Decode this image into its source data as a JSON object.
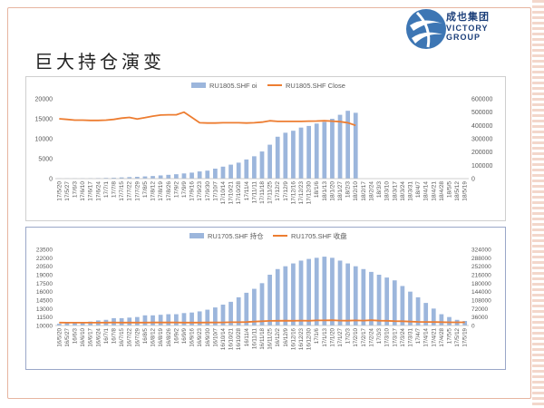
{
  "slide": {
    "title": "巨大持仓演变",
    "logo": {
      "cn": "成也集团",
      "en1": "VICTORY",
      "en2": "GROUP"
    }
  },
  "colors": {
    "bar": "#9cb6dc",
    "line": "#ed7d31",
    "axis": "#bfbfbf",
    "text": "#595959"
  },
  "chart_data": [
    {
      "type": "bar+line",
      "legend_position": "top",
      "series": [
        {
          "name": "RU1805.SHF oi",
          "kind": "bar",
          "axis": "left"
        },
        {
          "name": "RU1805.SHF Close",
          "kind": "line",
          "axis": "right"
        }
      ],
      "y_left": {
        "min": 0,
        "max": 20000,
        "ticks": [
          "0",
          "5000",
          "10000",
          "15000",
          "20000"
        ]
      },
      "y_right": {
        "min": 0,
        "max": 600000,
        "ticks": [
          "0",
          "100000",
          "200000",
          "300000",
          "400000",
          "500000",
          "600000"
        ]
      },
      "x_ticks": [
        "17/5/20",
        "17/5/27",
        "17/6/3",
        "17/6/10",
        "17/6/17",
        "17/6/24",
        "17/7/1",
        "17/7/8",
        "17/7/15",
        "17/7/22",
        "17/7/29",
        "17/8/5",
        "17/8/12",
        "17/8/19",
        "17/8/26",
        "17/9/2",
        "17/9/9",
        "17/9/16",
        "17/9/23",
        "17/9/30",
        "17/10/7",
        "17/10/14",
        "17/10/21",
        "17/10/28",
        "17/11/4",
        "17/11/11",
        "17/11/18",
        "17/11/25",
        "17/12/2",
        "17/12/9",
        "17/12/16",
        "17/12/23",
        "17/12/30",
        "18/1/6",
        "18/1/13",
        "18/1/20",
        "18/1/27",
        "18/2/3",
        "18/2/10",
        "18/2/17",
        "18/2/24",
        "18/3/3",
        "18/3/10",
        "18/3/17",
        "18/3/24",
        "18/3/31",
        "18/4/7",
        "18/4/14",
        "18/4/21",
        "18/4/28",
        "18/5/5",
        "18/5/12",
        "18/5/19"
      ],
      "bar_values": [
        50,
        60,
        70,
        80,
        100,
        130,
        180,
        220,
        300,
        380,
        450,
        550,
        650,
        800,
        950,
        1100,
        1300,
        1500,
        1800,
        2000,
        2500,
        3000,
        3500,
        4000,
        4800,
        5600,
        6800,
        8500,
        10500,
        11500,
        12000,
        12800,
        13200,
        13800,
        14200,
        15000,
        16000,
        17000,
        16500,
        null,
        null,
        null,
        null,
        null,
        null,
        null,
        null,
        null,
        null,
        null,
        null,
        null,
        null
      ],
      "line_values": [
        450000,
        445000,
        440000,
        440000,
        438000,
        438000,
        440000,
        445000,
        455000,
        460000,
        448000,
        458000,
        470000,
        478000,
        480000,
        480000,
        500000,
        460000,
        420000,
        418000,
        418000,
        420000,
        420000,
        420000,
        418000,
        420000,
        425000,
        435000,
        430000,
        430000,
        430000,
        430000,
        432000,
        433000,
        435000,
        432000,
        428000,
        420000,
        400000,
        null,
        null,
        null,
        null,
        null,
        null,
        null,
        null,
        null,
        null,
        null,
        null,
        null,
        null
      ]
    },
    {
      "type": "bar+line",
      "legend_position": "top",
      "series": [
        {
          "name": "RU1705.SHF 持仓",
          "kind": "bar",
          "axis": "left"
        },
        {
          "name": "RU1705.SHF 收盘",
          "kind": "line",
          "axis": "right"
        }
      ],
      "y_left": {
        "min": 10000,
        "max": 23500,
        "ticks": [
          "10000",
          "11500",
          "13000",
          "14500",
          "16000",
          "17500",
          "19000",
          "20500",
          "22000",
          "23500"
        ]
      },
      "y_right": {
        "min": 0,
        "max": 324000,
        "ticks": [
          "0",
          "36000",
          "72000",
          "108000",
          "144000",
          "180000",
          "216000",
          "252000",
          "288000",
          "324000"
        ]
      },
      "x_ticks": [
        "16/5/20",
        "16/5/27",
        "16/6/3",
        "16/6/10",
        "16/6/17",
        "16/6/24",
        "16/7/1",
        "16/7/8",
        "16/7/15",
        "16/7/22",
        "16/7/29",
        "16/8/5",
        "16/8/12",
        "16/8/19",
        "16/8/26",
        "16/9/2",
        "16/9/9",
        "16/9/16",
        "16/9/23",
        "16/9/30",
        "16/10/7",
        "16/10/14",
        "16/10/21",
        "16/10/28",
        "16/11/4",
        "16/11/11",
        "16/11/18",
        "16/11/25",
        "16/12/2",
        "16/12/9",
        "16/12/16",
        "16/12/23",
        "16/12/30",
        "17/1/6",
        "17/1/13",
        "17/1/20",
        "17/1/27",
        "17/2/3",
        "17/2/10",
        "17/2/17",
        "17/2/24",
        "17/3/3",
        "17/3/10",
        "17/3/17",
        "17/3/24",
        "17/3/31",
        "17/4/7",
        "17/4/14",
        "17/4/21",
        "17/4/28",
        "17/5/5",
        "17/5/12",
        "17/5/19"
      ],
      "bar_values": [
        10300,
        10400,
        10500,
        10600,
        10700,
        10900,
        11000,
        11300,
        11300,
        11400,
        11500,
        11800,
        11800,
        11900,
        12000,
        12000,
        12200,
        12300,
        12500,
        12800,
        13200,
        13700,
        14200,
        15000,
        15800,
        16500,
        17500,
        19000,
        20000,
        20500,
        21000,
        21500,
        21800,
        22000,
        22200,
        22000,
        21500,
        21000,
        20500,
        20000,
        19500,
        19000,
        18500,
        18000,
        17000,
        16000,
        15000,
        14000,
        13000,
        12000,
        11500,
        11000,
        10800
      ],
      "line_values": [
        12200,
        11800,
        11900,
        12000,
        12000,
        11900,
        12300,
        12800,
        12300,
        12400,
        12300,
        12400,
        12800,
        12600,
        12700,
        12600,
        12500,
        12400,
        12500,
        12800,
        12900,
        13300,
        13700,
        14000,
        14800,
        16500,
        18000,
        19500,
        20000,
        20500,
        20000,
        21000,
        20000,
        21500,
        21500,
        22500,
        21000,
        20500,
        21500,
        21000,
        22500,
        20500,
        20000,
        18500,
        18000,
        16500,
        15500,
        15200,
        14500,
        14300,
        13500,
        13500,
        13500
      ]
    }
  ]
}
